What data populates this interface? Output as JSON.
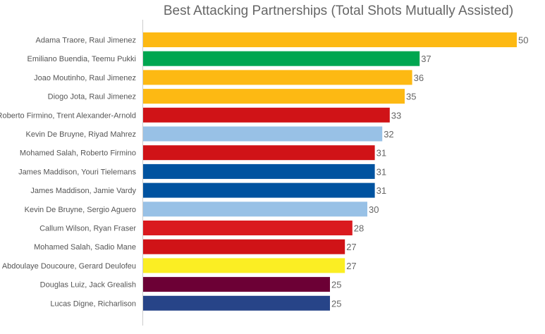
{
  "chart_data": {
    "type": "bar",
    "orientation": "horizontal",
    "title": "Best Attacking Partnerships (Total Shots Mutually Assisted)",
    "xlabel": "",
    "ylabel": "",
    "xlim": [
      0,
      50
    ],
    "grid": false,
    "legend": "none",
    "categories": [
      "Adama Traore, Raul Jimenez",
      "Emiliano Buendia, Teemu Pukki",
      "Joao Moutinho, Raul Jimenez",
      "Diogo Jota, Raul Jimenez",
      "Roberto Firmino, Trent Alexander-Arnold",
      "Kevin De Bruyne, Riyad Mahrez",
      "Mohamed Salah, Roberto Firmino",
      "James Maddison, Youri Tielemans",
      "James Maddison, Jamie Vardy",
      "Kevin De Bruyne, Sergio Aguero",
      "Callum Wilson, Ryan Fraser",
      "Mohamed Salah, Sadio Mane",
      "Abdoulaye Doucoure, Gerard Deulofeu",
      "Douglas Luiz, Jack Grealish",
      "Lucas Digne, Richarlison"
    ],
    "values": [
      50,
      37,
      36,
      35,
      33,
      32,
      31,
      31,
      31,
      30,
      28,
      27,
      27,
      25,
      25
    ],
    "colors": [
      "#FDB913",
      "#00A650",
      "#FDB913",
      "#FDB913",
      "#D01317",
      "#98C1E6",
      "#D01317",
      "#0053A0",
      "#0053A0",
      "#98C1E6",
      "#DA1A1F",
      "#D01317",
      "#FBEE23",
      "#6C0035",
      "#274488"
    ]
  }
}
